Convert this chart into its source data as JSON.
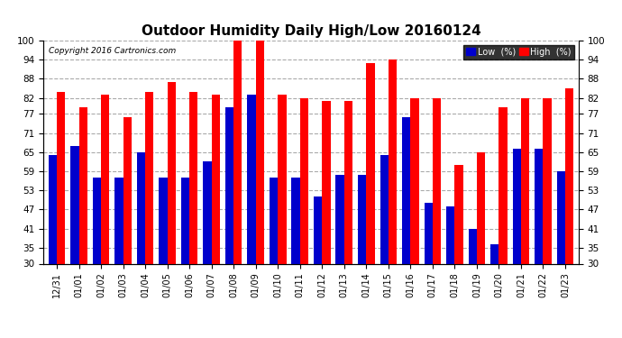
{
  "title": "Outdoor Humidity Daily High/Low 20160124",
  "copyright": "Copyright 2016 Cartronics.com",
  "dates": [
    "12/31",
    "01/01",
    "01/02",
    "01/03",
    "01/04",
    "01/05",
    "01/06",
    "01/07",
    "01/08",
    "01/09",
    "01/10",
    "01/11",
    "01/12",
    "01/13",
    "01/14",
    "01/15",
    "01/16",
    "01/17",
    "01/18",
    "01/19",
    "01/20",
    "01/21",
    "01/22",
    "01/23"
  ],
  "high": [
    84,
    79,
    83,
    76,
    84,
    87,
    84,
    83,
    100,
    100,
    83,
    82,
    81,
    81,
    93,
    94,
    82,
    82,
    61,
    65,
    79,
    82,
    82,
    85
  ],
  "low": [
    64,
    67,
    57,
    57,
    65,
    57,
    57,
    62,
    79,
    83,
    57,
    57,
    51,
    58,
    58,
    64,
    76,
    49,
    48,
    41,
    36,
    66,
    66,
    59
  ],
  "ylim": [
    30,
    100
  ],
  "yticks": [
    30,
    35,
    41,
    47,
    53,
    59,
    65,
    71,
    77,
    82,
    88,
    94,
    100
  ],
  "bar_width": 0.38,
  "high_color": "#ff0000",
  "low_color": "#0000cc",
  "bg_color": "#ffffff",
  "grid_color": "#aaaaaa",
  "title_fontsize": 11,
  "legend_label_low": "Low  (%)",
  "legend_label_high": "High  (%)"
}
